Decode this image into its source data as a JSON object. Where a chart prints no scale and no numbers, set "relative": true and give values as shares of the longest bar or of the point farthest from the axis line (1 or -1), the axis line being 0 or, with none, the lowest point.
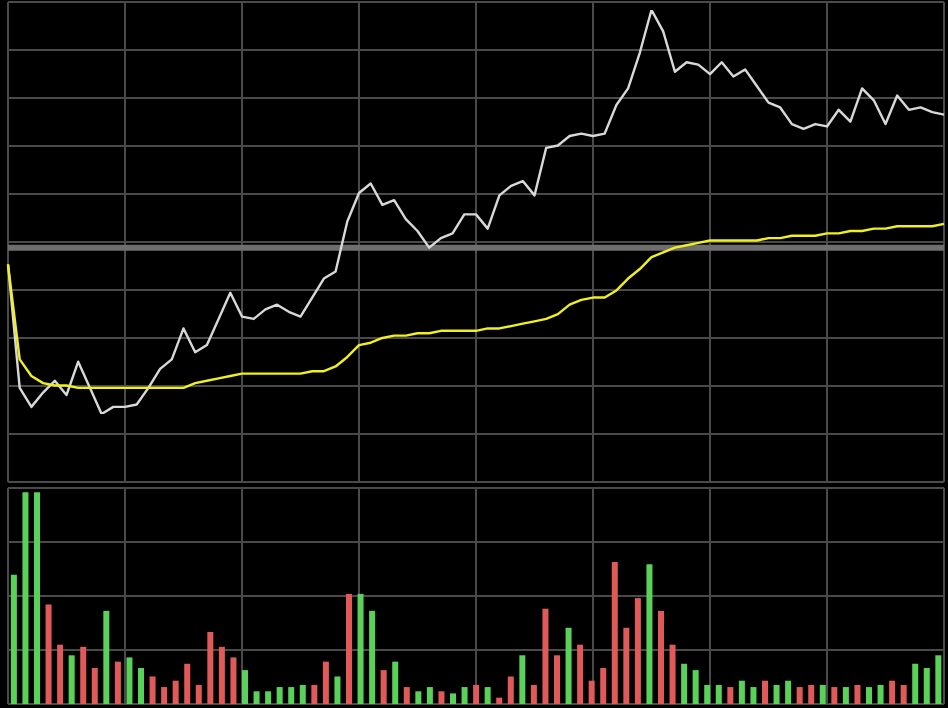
{
  "chart_data": [
    {
      "type": "line",
      "relative": true,
      "grid": true,
      "legend": false,
      "marker": "none",
      "categories": [
        null,
        null,
        null,
        null,
        null,
        null,
        null,
        null,
        null,
        null,
        null,
        null,
        null,
        null,
        null,
        null,
        null,
        null,
        null,
        null,
        null,
        null,
        null,
        null,
        null,
        null,
        null,
        null,
        null,
        null,
        null,
        null,
        null,
        null,
        null,
        null,
        null,
        null,
        null,
        null,
        null,
        null,
        null,
        null,
        null,
        null,
        null,
        null,
        null,
        null,
        null,
        null,
        null,
        null,
        null,
        null,
        null,
        null,
        null,
        null,
        null,
        null,
        null,
        null,
        null,
        null,
        null,
        null,
        null,
        null,
        null,
        null,
        null,
        null,
        null,
        null,
        null,
        null,
        null,
        null,
        null
      ],
      "ref_lines": [
        {
          "axis": "y",
          "value": 0,
          "color": "#6e6e6e"
        }
      ],
      "series": [
        {
          "color": "#d8d8d8",
          "values": [
            -0.07,
            -0.59,
            -0.67,
            -0.61,
            -0.56,
            -0.62,
            -0.48,
            -0.59,
            -0.7,
            -0.67,
            -0.67,
            -0.66,
            -0.59,
            -0.51,
            -0.47,
            -0.34,
            -0.44,
            -0.41,
            -0.3,
            -0.19,
            -0.29,
            -0.3,
            -0.26,
            -0.24,
            -0.27,
            -0.29,
            -0.21,
            -0.13,
            -0.1,
            0.11,
            0.23,
            0.27,
            0.18,
            0.2,
            0.12,
            0.07,
            0,
            0.04,
            0.06,
            0.14,
            0.14,
            0.08,
            0.22,
            0.26,
            0.28,
            0.22,
            0.42,
            0.43,
            0.47,
            0.48,
            0.47,
            0.48,
            0.6,
            0.67,
            0.82,
            1,
            0.91,
            0.74,
            0.78,
            0.77,
            0.73,
            0.78,
            0.72,
            0.75,
            0.68,
            0.61,
            0.59,
            0.52,
            0.5,
            0.52,
            0.51,
            0.58,
            0.53,
            0.67,
            0.62,
            0.52,
            0.64,
            0.58,
            0.59,
            0.57,
            0.56
          ]
        },
        {
          "color": "#f0f020",
          "values": [
            -0.07,
            -0.47,
            -0.54,
            -0.57,
            -0.58,
            -0.58,
            -0.59,
            -0.59,
            -0.59,
            -0.59,
            -0.59,
            -0.59,
            -0.59,
            -0.59,
            -0.59,
            -0.59,
            -0.57,
            -0.56,
            -0.55,
            -0.54,
            -0.53,
            -0.53,
            -0.53,
            -0.53,
            -0.53,
            -0.53,
            -0.52,
            -0.52,
            -0.5,
            -0.46,
            -0.41,
            -0.4,
            -0.38,
            -0.37,
            -0.37,
            -0.36,
            -0.36,
            -0.35,
            -0.35,
            -0.35,
            -0.35,
            -0.34,
            -0.34,
            -0.33,
            -0.32,
            -0.31,
            -0.3,
            -0.28,
            -0.24,
            -0.22,
            -0.21,
            -0.21,
            -0.18,
            -0.13,
            -0.09,
            -0.04,
            -0.02,
            0,
            0.01,
            0.02,
            0.03,
            0.03,
            0.03,
            0.03,
            0.03,
            0.04,
            0.04,
            0.05,
            0.05,
            0.05,
            0.06,
            0.06,
            0.07,
            0.07,
            0.08,
            0.08,
            0.09,
            0.09,
            0.09,
            0.09,
            0.1
          ]
        }
      ]
    },
    {
      "type": "bar",
      "relative": true,
      "grid": true,
      "legend": false,
      "categories": [
        null,
        null,
        null,
        null,
        null,
        null,
        null,
        null,
        null,
        null,
        null,
        null,
        null,
        null,
        null,
        null,
        null,
        null,
        null,
        null,
        null,
        null,
        null,
        null,
        null,
        null,
        null,
        null,
        null,
        null,
        null,
        null,
        null,
        null,
        null,
        null,
        null,
        null,
        null,
        null,
        null,
        null,
        null,
        null,
        null,
        null,
        null,
        null,
        null,
        null,
        null,
        null,
        null,
        null,
        null,
        null,
        null,
        null,
        null,
        null,
        null,
        null,
        null,
        null,
        null,
        null,
        null,
        null,
        null,
        null,
        null,
        null,
        null,
        null,
        null,
        null,
        null,
        null,
        null,
        null,
        null
      ],
      "values": [
        0.61,
        1,
        1,
        0.47,
        0.28,
        0.23,
        0.27,
        0.17,
        0.44,
        0.2,
        0.22,
        0.17,
        0.13,
        0.08,
        0.11,
        0.19,
        0.09,
        0.34,
        0.27,
        0.22,
        0.16,
        0.06,
        0.06,
        0.08,
        0.08,
        0.09,
        0.09,
        0.2,
        0.13,
        0.52,
        0.52,
        0.44,
        0.16,
        0.2,
        0.08,
        0.06,
        0.08,
        0.06,
        0.05,
        0.08,
        0.09,
        0.08,
        0.03,
        0.13,
        0.23,
        0.09,
        0.45,
        0.23,
        0.36,
        0.28,
        0.11,
        0.17,
        0.67,
        0.36,
        0.5,
        0.66,
        0.44,
        0.28,
        0.19,
        0.16,
        0.09,
        0.09,
        0.08,
        0.11,
        0.08,
        0.11,
        0.09,
        0.11,
        0.08,
        0.09,
        0.09,
        0.08,
        0.08,
        0.09,
        0.08,
        0.09,
        0.11,
        0.09,
        0.19,
        0.17,
        0.23
      ],
      "colors": [
        "#5ad25a",
        "#5ad25a",
        "#5ad25a",
        "#e05a5a",
        "#e05a5a",
        "#5ad25a",
        "#e05a5a",
        "#e05a5a",
        "#5ad25a",
        "#e05a5a",
        "#5ad25a",
        "#5ad25a",
        "#e05a5a",
        "#e05a5a",
        "#e05a5a",
        "#e05a5a",
        "#e05a5a",
        "#e05a5a",
        "#e05a5a",
        "#e05a5a",
        "#5ad25a",
        "#5ad25a",
        "#5ad25a",
        "#5ad25a",
        "#5ad25a",
        "#5ad25a",
        "#e05a5a",
        "#e05a5a",
        "#5ad25a",
        "#e05a5a",
        "#5ad25a",
        "#5ad25a",
        "#e05a5a",
        "#5ad25a",
        "#e05a5a",
        "#5ad25a",
        "#5ad25a",
        "#e05a5a",
        "#5ad25a",
        "#5ad25a",
        "#e05a5a",
        "#5ad25a",
        "#e05a5a",
        "#e05a5a",
        "#5ad25a",
        "#e05a5a",
        "#e05a5a",
        "#e05a5a",
        "#5ad25a",
        "#e05a5a",
        "#e05a5a",
        "#e05a5a",
        "#e05a5a",
        "#e05a5a",
        "#e05a5a",
        "#5ad25a",
        "#e05a5a",
        "#e05a5a",
        "#5ad25a",
        "#5ad25a",
        "#5ad25a",
        "#5ad25a",
        "#e05a5a",
        "#5ad25a",
        "#5ad25a",
        "#e05a5a",
        "#5ad25a",
        "#5ad25a",
        "#e05a5a",
        "#e05a5a",
        "#5ad25a",
        "#e05a5a",
        "#5ad25a",
        "#e05a5a",
        "#5ad25a",
        "#5ad25a",
        "#e05a5a",
        "#e05a5a",
        "#5ad25a",
        "#5ad25a",
        "#5ad25a"
      ]
    }
  ]
}
